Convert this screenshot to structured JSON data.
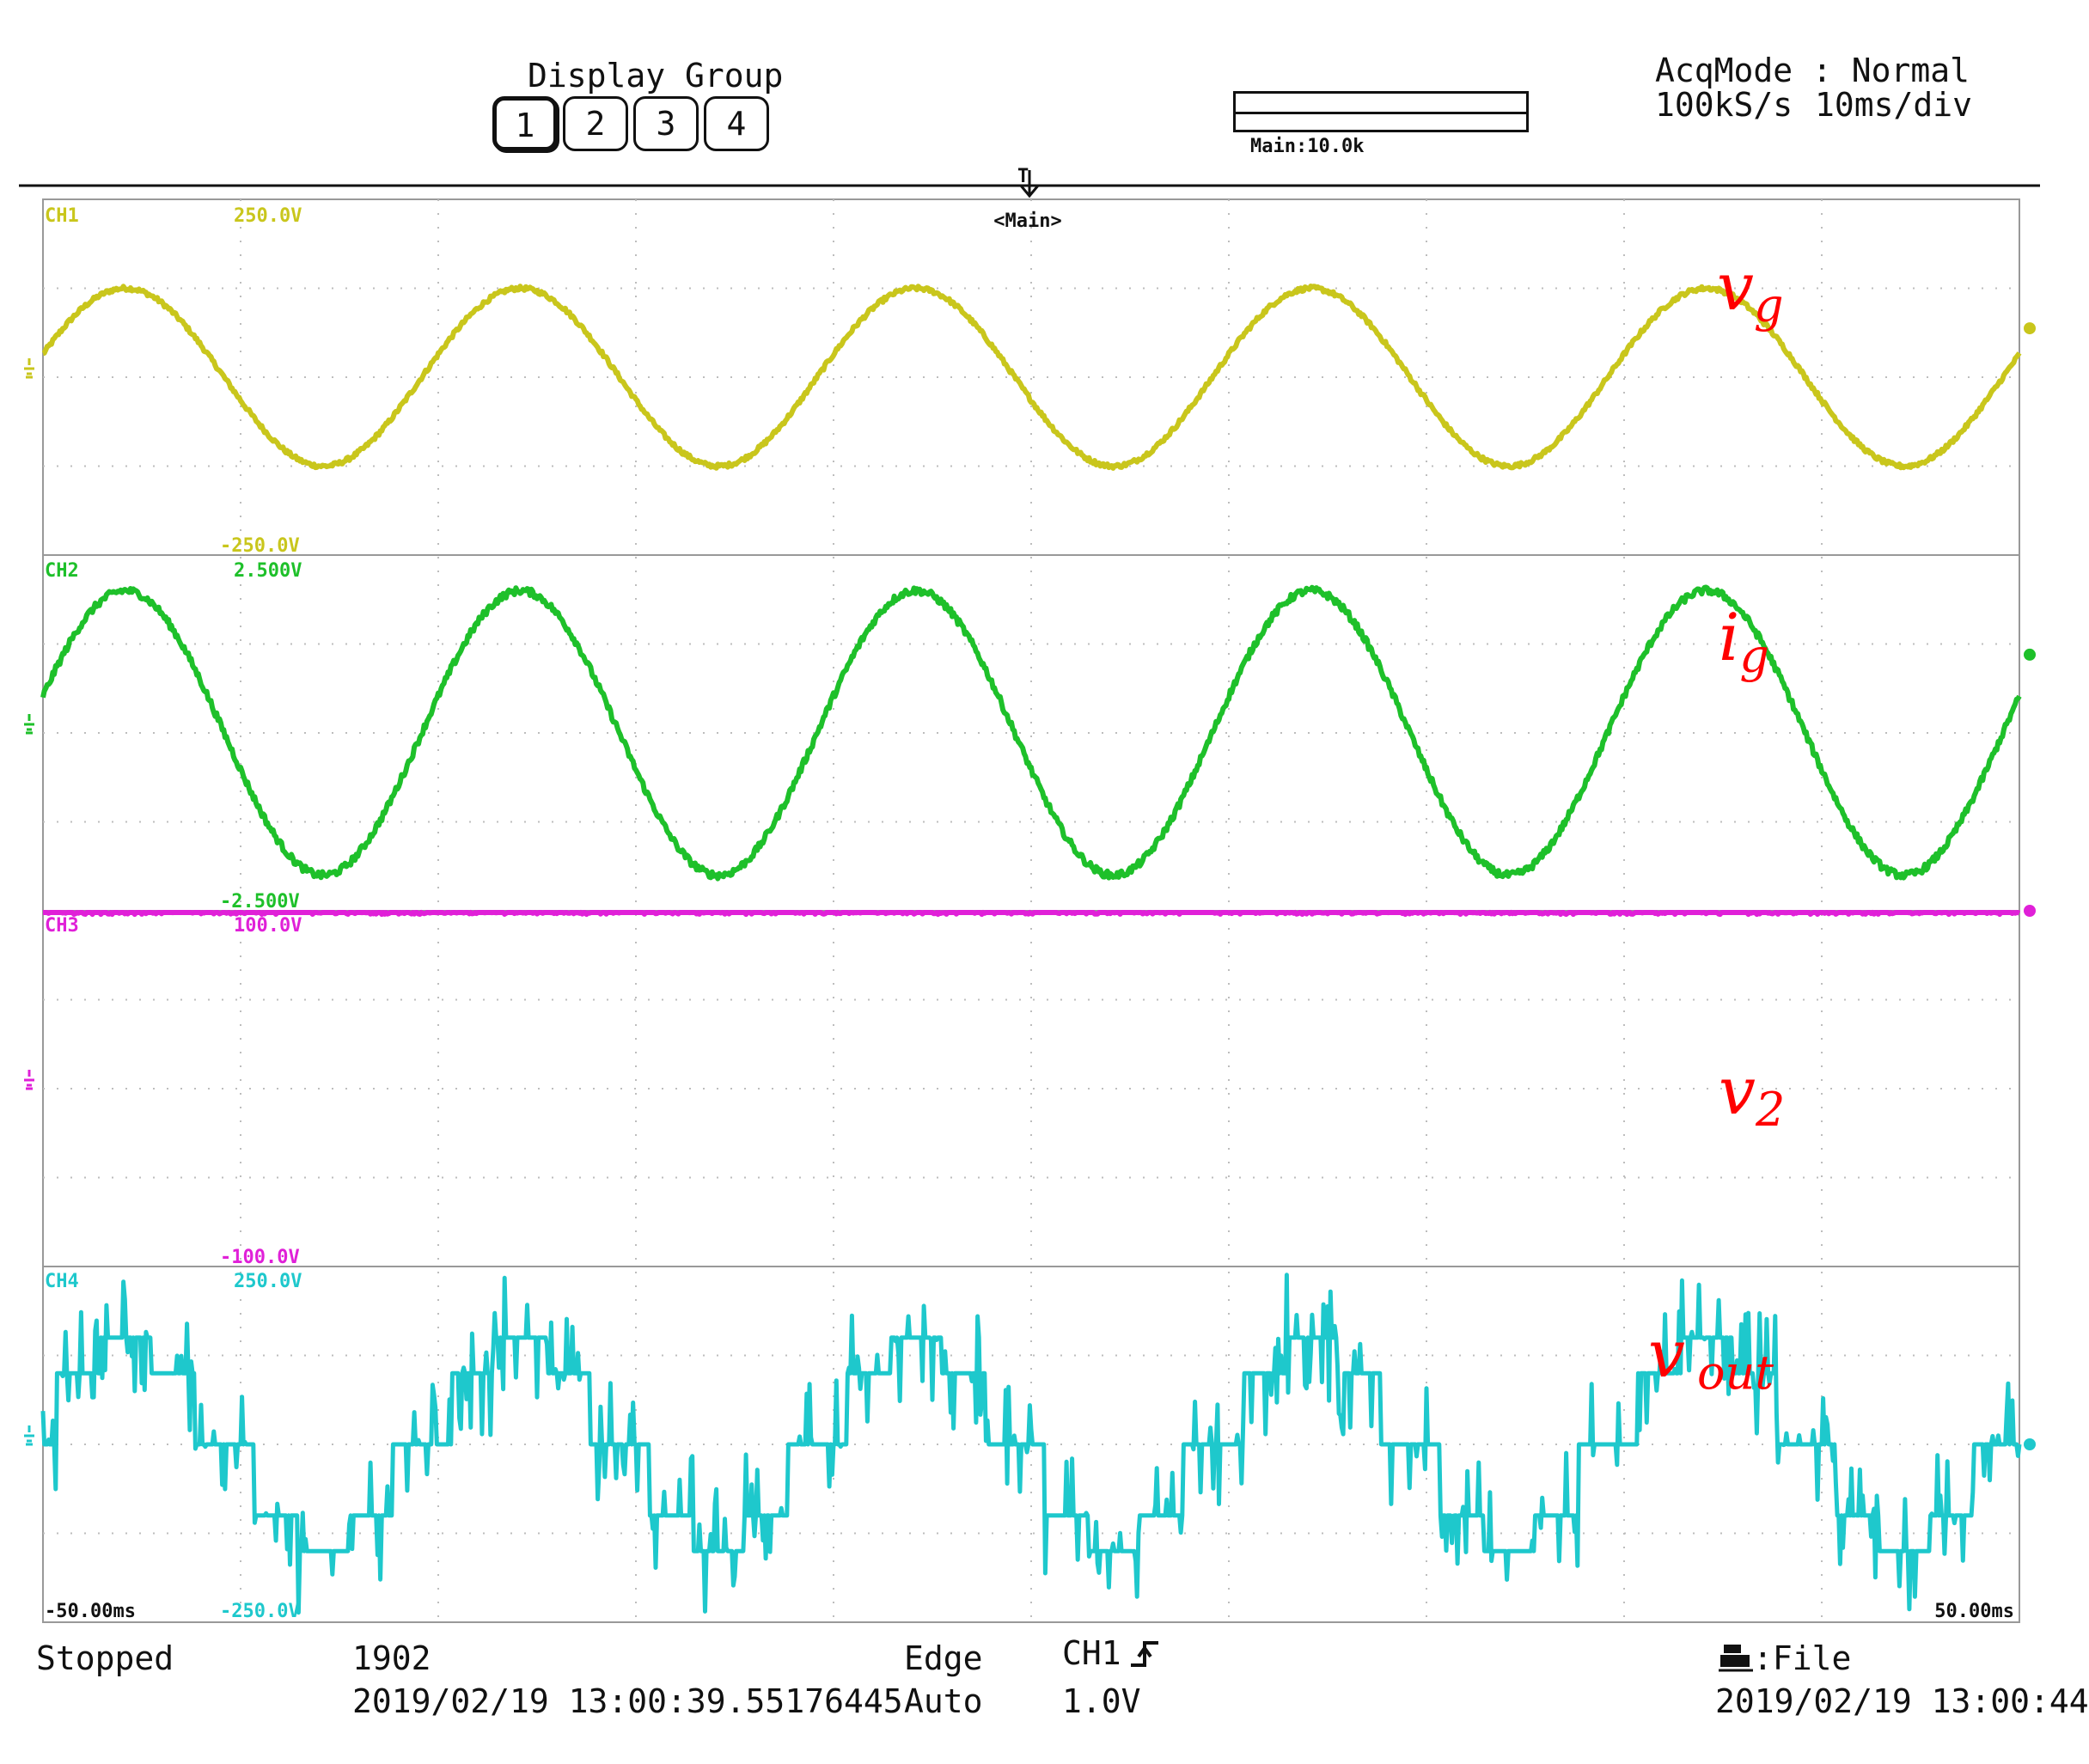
{
  "header": {
    "display_group_label": "Display Group",
    "display_group_buttons": [
      "1",
      "2",
      "3",
      "4"
    ],
    "selected_group": "1",
    "zoom_label": "Main:10.0k",
    "acq_mode": "AcqMode : Normal",
    "sample_rate": "100kS/s",
    "time_div": "10ms/div"
  },
  "trigger_marker": {
    "symbol": "T",
    "label": "<Main>"
  },
  "footer": {
    "status": "Stopped",
    "count": "1902",
    "trigger_timestamp": "2019/02/19 13:00:39.55176445",
    "trigger_type": "Edge",
    "trigger_mode": "Auto",
    "trigger_source": "CH1",
    "trigger_level": "1.0V",
    "save_target": ":File",
    "current_timestamp": "2019/02/19 13:00:44"
  },
  "colors": {
    "ch1": "#c9c61c",
    "ch2": "#1ec02a",
    "ch3": "#e020d8",
    "ch4": "#1ec8cc",
    "annotation": "#ff0000"
  },
  "chart_data": {
    "type": "line",
    "x_unit": "ms",
    "x_range": [
      -50,
      50
    ],
    "time_start_label": "-50.00ms",
    "time_end_label": "50.00ms",
    "x_divisions": 10,
    "grid": true,
    "channels": [
      {
        "id": "CH1",
        "upper_label": "250.0V",
        "lower_label": "-250.0V",
        "range": [
          -250,
          250
        ],
        "annotation": "v",
        "annotation_sub": "g",
        "waveform": "sine",
        "amplitude": 125,
        "offset": 0,
        "frequency_hz": 50,
        "phase_deg": 195,
        "noise": 3
      },
      {
        "id": "CH2",
        "upper_label": "2.500V",
        "lower_label": "-2.500V",
        "range": [
          -2.5,
          2.5
        ],
        "annotation": "i",
        "annotation_sub": "g",
        "waveform": "sine",
        "amplitude": 2.0,
        "offset": 0,
        "frequency_hz": 50,
        "phase_deg": 195,
        "noise": 0.05
      },
      {
        "id": "CH3",
        "upper_label": "100.0V",
        "lower_label": "-100.0V",
        "range": [
          -100,
          100
        ],
        "annotation": "v",
        "annotation_sub": "2",
        "waveform": "dc",
        "dc_value": 100,
        "noise": 2
      },
      {
        "id": "CH4",
        "upper_label": "250.0V",
        "lower_label": "-250.0V",
        "range": [
          -250,
          250
        ],
        "annotation": "v",
        "annotation_sub": "out",
        "waveform": "staircase",
        "levels": [
          -150,
          -100,
          0,
          100,
          150
        ],
        "frequency_hz": 50,
        "phase_deg": 195
      }
    ]
  }
}
